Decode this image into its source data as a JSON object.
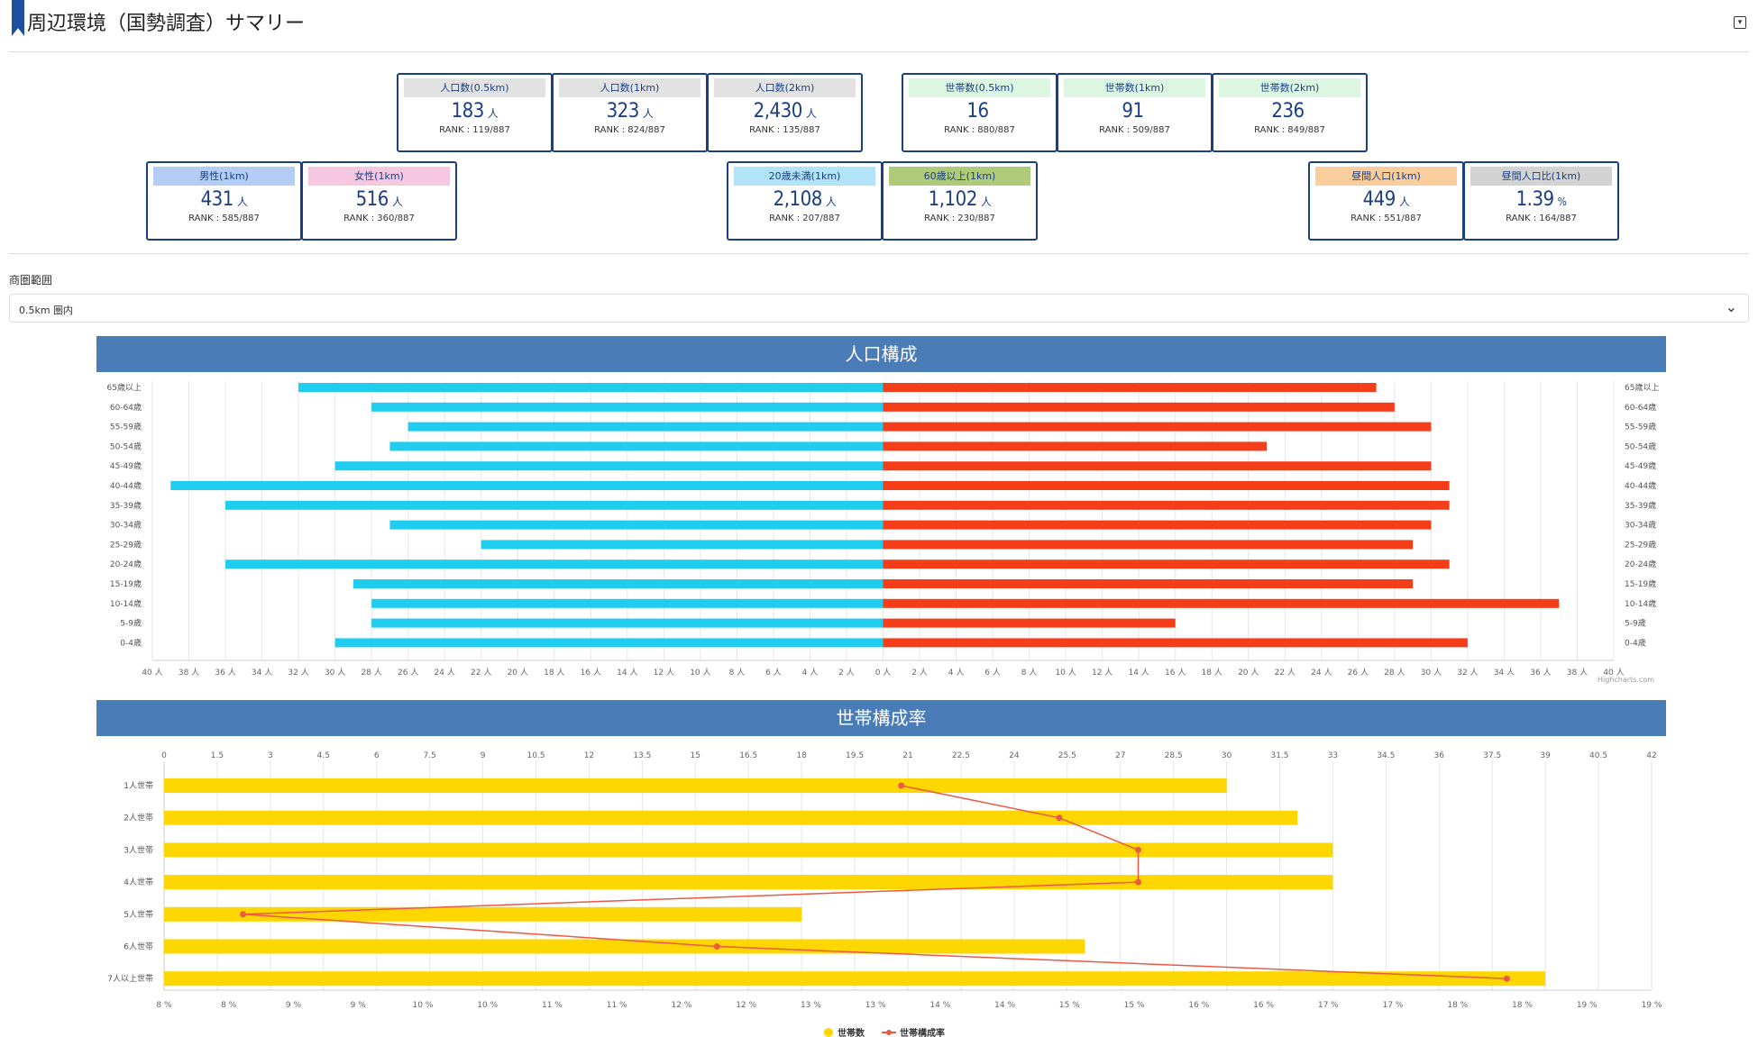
{
  "header": {
    "title": "周辺環境（国勢調査）サマリー"
  },
  "cards_row1": [
    {
      "label": "人口数(0.5km)",
      "value": "183",
      "unit": "人",
      "rank": "RANK : 119/887",
      "bg": "#e2e2e2"
    },
    {
      "label": "人口数(1km)",
      "value": "323",
      "unit": "人",
      "rank": "RANK : 824/887",
      "bg": "#e2e2e2"
    },
    {
      "label": "人口数(2km)",
      "value": "2,430",
      "unit": "人",
      "rank": "RANK : 135/887",
      "bg": "#e2e2e2"
    },
    {
      "label": "世帯数(0.5km)",
      "value": "16",
      "unit": "",
      "rank": "RANK : 880/887",
      "bg": "#dcf6e2"
    },
    {
      "label": "世帯数(1km)",
      "value": "91",
      "unit": "",
      "rank": "RANK : 509/887",
      "bg": "#dcf6e2"
    },
    {
      "label": "世帯数(2km)",
      "value": "236",
      "unit": "",
      "rank": "RANK : 849/887",
      "bg": "#dcf6e2"
    }
  ],
  "cards_row2": [
    {
      "label": "男性(1km)",
      "value": "431",
      "unit": "人",
      "rank": "RANK : 585/887",
      "bg": "#b3cdf5"
    },
    {
      "label": "女性(1km)",
      "value": "516",
      "unit": "人",
      "rank": "RANK : 360/887",
      "bg": "#f6c7e1"
    },
    {
      "label": "20歳未満(1km)",
      "value": "2,108",
      "unit": "人",
      "rank": "RANK : 207/887",
      "bg": "#b3e3f7"
    },
    {
      "label": "60歳以上(1km)",
      "value": "1,102",
      "unit": "人",
      "rank": "RANK : 230/887",
      "bg": "#aecb7a"
    },
    {
      "label": "昼間人口(1km)",
      "value": "449",
      "unit": "人",
      "rank": "RANK : 551/887",
      "bg": "#f9cd9c"
    },
    {
      "label": "昼間人口比(1km)",
      "value": "1.39",
      "unit": "%",
      "rank": "RANK : 164/887",
      "bg": "#d3d3d3"
    }
  ],
  "range": {
    "label": "商圏範囲",
    "selected": "0.5km 圏内"
  },
  "chart_titles": {
    "population": "人口構成",
    "household": "世帯構成率"
  },
  "colors": {
    "male": "#1fcdef",
    "female": "#f53d1a",
    "bar": "#ffd700",
    "line": "#ea5a45",
    "accent": "#1a3f82",
    "banner": "#4a7db8"
  },
  "chart_data": [
    {
      "type": "bar",
      "title": "人口構成",
      "categories": [
        "65歳以上",
        "60-64歳",
        "55-59歳",
        "50-54歳",
        "45-49歳",
        "40-44歳",
        "35-39歳",
        "30-34歳",
        "25-29歳",
        "20-24歳",
        "15-19歳",
        "10-14歳",
        "5-9歳",
        "0-4歳"
      ],
      "series": [
        {
          "name": "",
          "values": [
            32,
            28,
            26,
            27,
            30,
            39,
            36,
            27,
            22,
            36,
            29,
            28,
            28,
            30
          ]
        },
        {
          "name": "",
          "values": [
            27,
            28,
            30,
            21,
            30,
            31,
            31,
            30,
            29,
            31,
            29,
            37,
            16,
            32
          ]
        }
      ],
      "xlim": [
        -40,
        40
      ],
      "ticks": [
        40,
        38,
        36,
        34,
        32,
        30,
        28,
        26,
        24,
        22,
        20,
        18,
        16,
        14,
        12,
        10,
        8,
        6,
        4,
        2,
        0,
        2,
        4,
        6,
        8,
        10,
        12,
        14,
        16,
        18,
        20,
        22,
        24,
        26,
        28,
        30,
        32,
        34,
        36,
        38,
        40
      ],
      "tick_unit": "人",
      "credit": "Highcharts.com"
    },
    {
      "type": "bar",
      "title": "世帯構成率",
      "categories": [
        "1人世帯",
        "2人世帯",
        "3人世帯",
        "4人世帯",
        "5人世帯",
        "6人世帯",
        "7人以上世帯"
      ],
      "top_ticks": [
        "0",
        "1.5",
        "3",
        "4.5",
        "6",
        "7.5",
        "9",
        "10.5",
        "12",
        "13.5",
        "15",
        "16.5",
        "18",
        "19.5",
        "21",
        "22.5",
        "24",
        "25.5",
        "27",
        "28.5",
        "30",
        "31.5",
        "33",
        "34.5",
        "36",
        "37.5",
        "39",
        "40.5",
        "42"
      ],
      "bottom_ticks": [
        "8 %",
        "8 %",
        "9 %",
        "9 %",
        "10 %",
        "10 %",
        "11 %",
        "11 %",
        "12 %",
        "12 %",
        "13 %",
        "13 %",
        "14 %",
        "14 %",
        "15 %",
        "15 %",
        "16 %",
        "16 %",
        "17 %",
        "17 %",
        "18 %",
        "18 %",
        "19 %",
        "19 %"
      ],
      "bar_xlim": [
        0,
        42
      ],
      "line_xlim": [
        8,
        19.3
      ],
      "series": [
        {
          "name": "世帯数",
          "type": "bar",
          "values": [
            30,
            32,
            33,
            33,
            18,
            26,
            39
          ]
        },
        {
          "name": "世帯構成率",
          "type": "line",
          "values": [
            13.6,
            14.8,
            15.4,
            15.4,
            8.6,
            12.2,
            18.2
          ]
        }
      ]
    }
  ]
}
